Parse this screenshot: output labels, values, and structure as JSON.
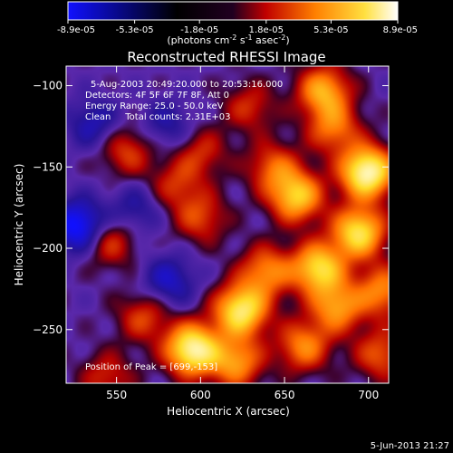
{
  "chart_data": {
    "type": "heatmap",
    "title": "Reconstructed RHESSI Image",
    "colorbar": {
      "min": -8.9e-05,
      "max": 8.9e-05,
      "tick_labels": [
        "-8.9e-05",
        "-5.3e-05",
        "-1.8e-05",
        "1.8e-05",
        "5.3e-05",
        "8.9e-05"
      ],
      "tick_values": [
        -8.9e-05,
        -5.3e-05,
        -1.8e-05,
        1.8e-05,
        5.3e-05,
        8.9e-05
      ],
      "unit_base": "(photons cm",
      "unit_exp1": "-2",
      "unit_mid": " s",
      "unit_exp2": "-1",
      "unit_mid2": " asec",
      "unit_exp3": "-2",
      "unit_end": ")",
      "colormap": [
        "#1010ff",
        "#000000",
        "#d00000",
        "#ff8800",
        "#ffee55",
        "#ffffff"
      ]
    },
    "xlabel": "Heliocentric X (arcsec)",
    "ylabel": "Heliocentric Y (arcsec)",
    "xlim": [
      520,
      712
    ],
    "ylim": [
      -283,
      -88
    ],
    "x_ticks": [
      550,
      600,
      650,
      700
    ],
    "x_tick_labels": [
      "550",
      "600",
      "650",
      "700"
    ],
    "y_ticks": [
      -100,
      -150,
      -200,
      -250
    ],
    "y_tick_labels": [
      "−100",
      "−150",
      "−200",
      "−250"
    ],
    "annotation_lines": [
      "5-Aug-2003 20:49:20.000 to 20:53:16.000",
      "Detectors: 4F 5F 6F 7F 8F, Att 0",
      "Energy Range: 25.0 - 50.0 keV",
      "Clean     Total counts: 2.31E+03"
    ],
    "peak_label": "Position of Peak = [699,-153]",
    "peak": [
      699,
      -153
    ],
    "timestamp": "5-Jun-2013 21:27",
    "sources": [
      {
        "x": 699,
        "y": -153,
        "level": 1.0
      },
      {
        "x": 673,
        "y": -103,
        "level": 0.6
      },
      {
        "x": 629,
        "y": -113,
        "level": 0.3
      },
      {
        "x": 679,
        "y": -126,
        "level": 0.45
      },
      {
        "x": 643,
        "y": -150,
        "level": 0.4
      },
      {
        "x": 657,
        "y": -168,
        "level": 0.7
      },
      {
        "x": 694,
        "y": -190,
        "level": 0.8
      },
      {
        "x": 670,
        "y": -212,
        "level": 0.75
      },
      {
        "x": 639,
        "y": -214,
        "level": 0.5
      },
      {
        "x": 600,
        "y": -181,
        "level": 0.35
      },
      {
        "x": 624,
        "y": -238,
        "level": 0.85
      },
      {
        "x": 681,
        "y": -236,
        "level": 0.55
      },
      {
        "x": 708,
        "y": -226,
        "level": 0.5
      },
      {
        "x": 595,
        "y": -262,
        "level": 0.95
      },
      {
        "x": 621,
        "y": -270,
        "level": 0.55
      },
      {
        "x": 661,
        "y": -260,
        "level": 0.5
      },
      {
        "x": 566,
        "y": -242,
        "level": 0.35
      },
      {
        "x": 544,
        "y": -279,
        "level": 0.3
      },
      {
        "x": 546,
        "y": -196,
        "level": 0.35
      },
      {
        "x": 585,
        "y": -161,
        "level": 0.3
      },
      {
        "x": 556,
        "y": -140,
        "level": 0.35
      },
      {
        "x": 600,
        "y": -141,
        "level": 0.3
      },
      {
        "x": 707,
        "y": -265,
        "level": 0.4
      }
    ],
    "negative_sources": [
      {
        "x": 527,
        "y": -186,
        "level": 0.6
      },
      {
        "x": 536,
        "y": -123,
        "level": 0.3
      },
      {
        "x": 581,
        "y": -220,
        "level": 0.35
      },
      {
        "x": 561,
        "y": -176,
        "level": 0.25
      },
      {
        "x": 580,
        "y": -124,
        "level": 0.25
      }
    ]
  }
}
